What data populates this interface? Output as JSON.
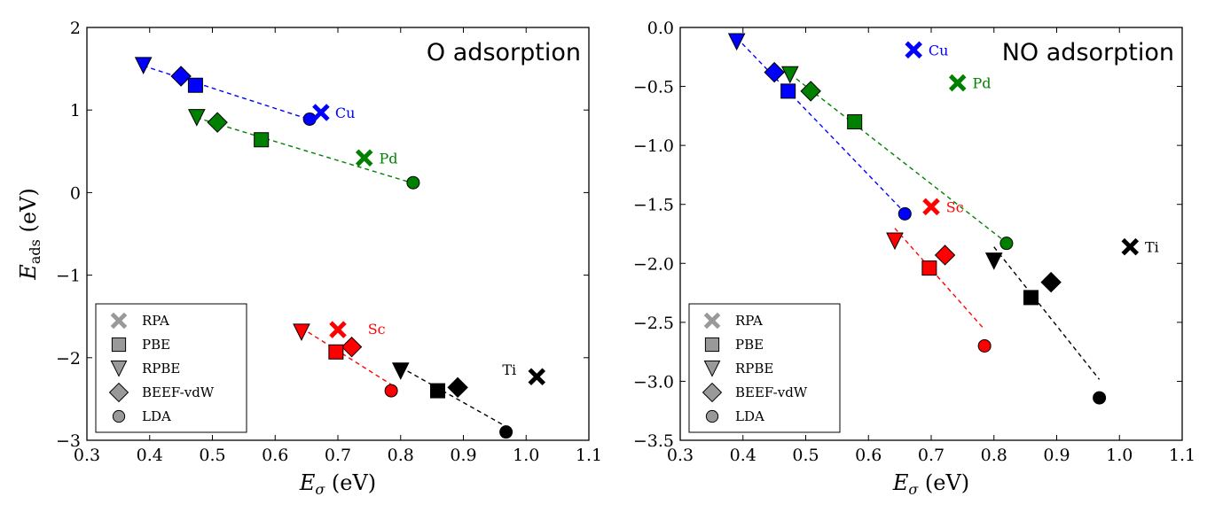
{
  "chart_data": [
    {
      "type": "scatter",
      "title": "O adsorption",
      "xlabel_symbol": "E",
      "xlabel_subscript": "σ",
      "xlabel_unit": " (eV)",
      "ylabel_symbol": "E",
      "ylabel_subscript": "ads",
      "ylabel_unit": " (eV)",
      "xlim": [
        0.3,
        1.1
      ],
      "ylim": [
        -3,
        2
      ],
      "xticks": [
        "0.3",
        "0.4",
        "0.5",
        "0.6",
        "0.7",
        "0.8",
        "0.9",
        "1.0",
        "1.1"
      ],
      "yticks": [
        "−3",
        "−2",
        "−1",
        "0",
        "1",
        "2"
      ],
      "legend_position": "bottom-left",
      "series": [
        {
          "name": "Cu",
          "color": "#0000ff",
          "RPBE": [
            0.39,
            1.54
          ],
          "BEEF-vdW": [
            0.45,
            1.41
          ],
          "PBE": [
            0.473,
            1.3
          ],
          "LDA": [
            0.655,
            0.89
          ],
          "RPA": [
            0.673,
            0.97
          ]
        },
        {
          "name": "Pd",
          "color": "#008000",
          "RPBE": [
            0.475,
            0.91
          ],
          "BEEF-vdW": [
            0.508,
            0.85
          ],
          "PBE": [
            0.578,
            0.64
          ],
          "LDA": [
            0.82,
            0.12
          ],
          "RPA": [
            0.742,
            0.42
          ]
        },
        {
          "name": "Sc",
          "color": "#ff0000",
          "RPBE": [
            0.642,
            -1.69
          ],
          "BEEF-vdW": [
            0.722,
            -1.87
          ],
          "PBE": [
            0.697,
            -1.93
          ],
          "LDA": [
            0.785,
            -2.4
          ],
          "RPA": [
            0.7,
            -1.66
          ]
        },
        {
          "name": "Ti",
          "color": "#000000",
          "RPBE": [
            0.8,
            -2.16
          ],
          "BEEF-vdW": [
            0.891,
            -2.36
          ],
          "PBE": [
            0.859,
            -2.4
          ],
          "LDA": [
            0.968,
            -2.9
          ],
          "RPA": [
            1.017,
            -2.23
          ]
        }
      ],
      "labels": [
        {
          "text": "Cu",
          "color": "#0000ff",
          "x": 0.69,
          "y": 0.97,
          "side": "right"
        },
        {
          "text": "Pd",
          "color": "#008000",
          "x": 0.76,
          "y": 0.42,
          "side": "right"
        },
        {
          "text": "Sc",
          "color": "#ff0000",
          "x": 0.742,
          "y": -1.65,
          "side": "right"
        },
        {
          "text": "Ti",
          "color": "#000000",
          "x": 0.99,
          "y": -2.14,
          "side": "left"
        }
      ]
    },
    {
      "type": "scatter",
      "title": "NO adsorption",
      "xlabel_symbol": "E",
      "xlabel_subscript": "σ",
      "xlabel_unit": " (eV)",
      "xlim": [
        0.3,
        1.1
      ],
      "ylim": [
        -3.5,
        0.0
      ],
      "xticks": [
        "0.3",
        "0.4",
        "0.5",
        "0.6",
        "0.7",
        "0.8",
        "0.9",
        "1.0",
        "1.1"
      ],
      "yticks": [
        "−3.5",
        "−3.0",
        "−2.5",
        "−2.0",
        "−1.5",
        "−1.0",
        "−0.5",
        "0.0"
      ],
      "legend_position": "bottom-left",
      "series": [
        {
          "name": "Cu",
          "color": "#0000ff",
          "RPBE": [
            0.39,
            -0.12
          ],
          "BEEF-vdW": [
            0.45,
            -0.38
          ],
          "PBE": [
            0.472,
            -0.54
          ],
          "LDA": [
            0.658,
            -1.58
          ],
          "RPA": [
            0.672,
            -0.19
          ]
        },
        {
          "name": "Pd",
          "color": "#008000",
          "RPBE": [
            0.475,
            -0.4
          ],
          "BEEF-vdW": [
            0.508,
            -0.54
          ],
          "PBE": [
            0.578,
            -0.8
          ],
          "LDA": [
            0.82,
            -1.83
          ],
          "RPA": [
            0.742,
            -0.47
          ]
        },
        {
          "name": "Sc",
          "color": "#ff0000",
          "RPBE": [
            0.642,
            -1.81
          ],
          "BEEF-vdW": [
            0.722,
            -1.93
          ],
          "PBE": [
            0.697,
            -2.04
          ],
          "LDA": [
            0.785,
            -2.7
          ],
          "RPA": [
            0.7,
            -1.52
          ]
        },
        {
          "name": "Ti",
          "color": "#000000",
          "RPBE": [
            0.8,
            -1.98
          ],
          "BEEF-vdW": [
            0.891,
            -2.16
          ],
          "PBE": [
            0.859,
            -2.29
          ],
          "LDA": [
            0.968,
            -3.14
          ],
          "RPA": [
            1.017,
            -1.86
          ]
        }
      ],
      "labels": [
        {
          "text": "Cu",
          "color": "#0000ff",
          "x": 0.69,
          "y": -0.19,
          "side": "right"
        },
        {
          "text": "Pd",
          "color": "#008000",
          "x": 0.76,
          "y": -0.47,
          "side": "right"
        },
        {
          "text": "Sc",
          "color": "#ff0000",
          "x": 0.718,
          "y": -1.52,
          "side": "right"
        },
        {
          "text": "Ti",
          "color": "#000000",
          "x": 1.035,
          "y": -1.86,
          "side": "right"
        }
      ]
    }
  ],
  "legend": {
    "items": [
      {
        "label": "RPA",
        "marker": "x"
      },
      {
        "label": "PBE",
        "marker": "square"
      },
      {
        "label": "RPBE",
        "marker": "triangle"
      },
      {
        "label": "BEEF-vdW",
        "marker": "diamond"
      },
      {
        "label": "LDA",
        "marker": "circle"
      }
    ],
    "marker_color": "#999999"
  }
}
